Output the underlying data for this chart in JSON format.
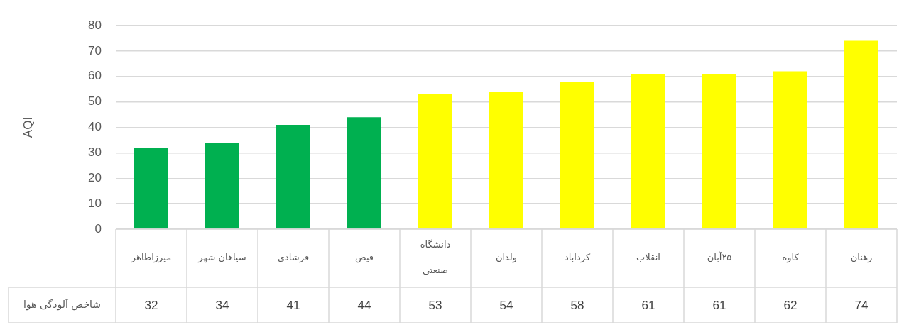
{
  "chart_data": {
    "type": "bar",
    "categories": [
      "میرزاطاهر",
      "سپاهان شهر",
      "فرشادی",
      "فیض",
      "دانشگاه صنعتی",
      "ولدان",
      "کرداباد",
      "انقلاب",
      "۲۵آبان",
      "کاوه",
      "رهنان"
    ],
    "series": [
      {
        "name": "شاخص آلودگی هوا",
        "colors": [
          "#00b050",
          "#00b050",
          "#00b050",
          "#00b050",
          "#ffff00",
          "#ffff00",
          "#ffff00",
          "#ffff00",
          "#ffff00",
          "#ffff00",
          "#ffff00"
        ],
        "values": [
          32,
          34,
          41,
          44,
          53,
          54,
          58,
          61,
          61,
          62,
          74
        ]
      }
    ],
    "ylabel": "AQI",
    "ylim": [
      0,
      80
    ],
    "yticks": [
      0,
      10,
      20,
      30,
      40,
      50,
      60,
      70,
      80
    ],
    "grid": "y",
    "data_labels": true
  }
}
